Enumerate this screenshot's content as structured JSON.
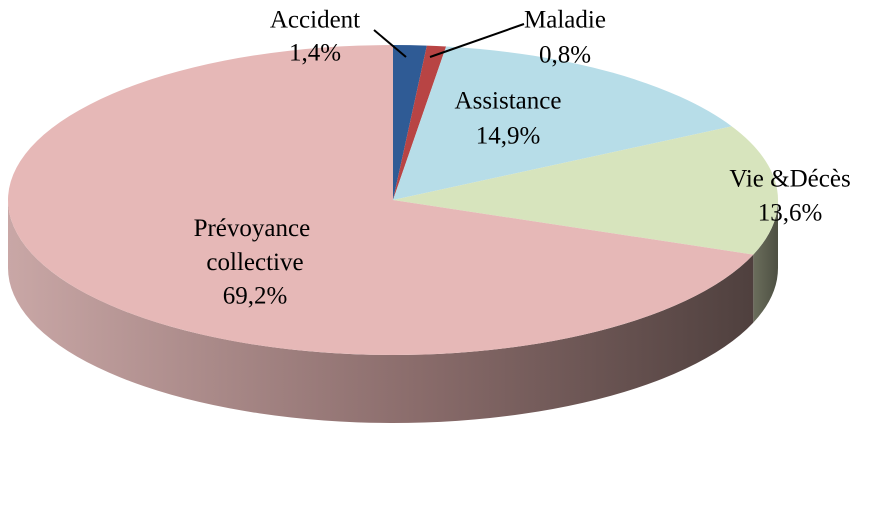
{
  "chart_data": {
    "type": "pie",
    "categories": [
      "Accident",
      "Maladie",
      "Assistance",
      "Vie &Décès",
      "Prévoyance collective"
    ],
    "values": [
      1.4,
      0.8,
      14.9,
      13.6,
      69.2
    ],
    "value_labels": [
      "1,4%",
      "0,8%",
      "14,9%",
      "13,6%",
      "69,2%"
    ],
    "colors": [
      "#2f5b95",
      "#b84444",
      "#b7dde8",
      "#d7e4bd",
      "#e6b8b7"
    ],
    "start_angle": 90,
    "direction": "clockwise",
    "three_d": true
  }
}
